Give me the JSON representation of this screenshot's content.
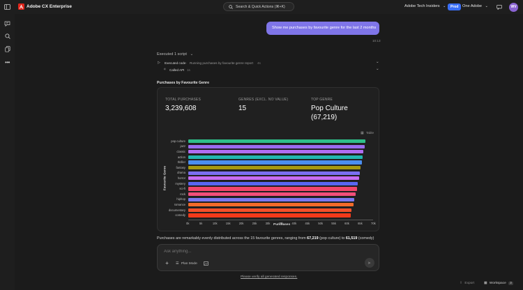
{
  "header": {
    "app_title": "Adobe CX Enterprise",
    "search_placeholder": "Search & Quick Actions (⌘+K)",
    "org_name": "Adobe Tech Insiders",
    "env_badge": "Prod",
    "workspace_switcher": "One Adobe",
    "avatar_initials": "WV"
  },
  "chat": {
    "user_message": "Show me purchases by favourite genre for the last 2 months",
    "message_time": "10:13",
    "executed_header": "Executed 1 script",
    "steps": [
      {
        "label": "Executed code",
        "detail": "Running purchases by favourite genre report",
        "duration": "4s"
      },
      {
        "label": "Called API",
        "detail": "",
        "duration": "1s"
      }
    ],
    "report_title": "Purchases by Favourite Genre",
    "summary": {
      "before": "Purchases are remarkably evenly distributed across the 15 favourite genres, ranging from ",
      "max_value": "67,219",
      "max_genre": " (pop culture) to ",
      "min_value": "61,519",
      "min_genre": " (comedy)"
    }
  },
  "kpis": {
    "total_label": "TOTAL PURCHASES",
    "total_value": "3,239,608",
    "genres_label": "GENRES (EXCL. NO VALUE)",
    "genres_value": "15",
    "top_label": "TOP GENRE",
    "top_value_line1": "Pop Culture",
    "top_value_line2": "(67,219)"
  },
  "table_toggle": "Table",
  "chart_data": {
    "type": "bar",
    "orientation": "horizontal",
    "categories": [
      "pop culture",
      "jazz",
      "classic",
      "action",
      "thriller",
      "fantasy",
      "drama",
      "horror",
      "mystery",
      "sci-fi",
      "rock",
      "hiphop",
      "romance",
      "documentary",
      "comedy"
    ],
    "values": [
      67219,
      66700,
      66400,
      66100,
      65800,
      65300,
      65000,
      64700,
      64300,
      63800,
      63400,
      62900,
      62500,
      61900,
      61519
    ],
    "colors": [
      "#2fbf8a",
      "#9b6bf0",
      "#b06cf2",
      "#22b6b0",
      "#4b8ef0",
      "#a79a10",
      "#7a6ff2",
      "#c66cf2",
      "#5a66f0",
      "#f2466a",
      "#f24f7a",
      "#7b78f0",
      "#f26b2a",
      "#f2502a",
      "#f23a1a"
    ],
    "xlabel": "Purchases",
    "ylabel": "Favourite Genre",
    "xlim": [
      0,
      70000
    ],
    "xticks": [
      "0k",
      "5k",
      "10k",
      "15k",
      "20k",
      "25k",
      "30k",
      "35k",
      "40k",
      "45k",
      "50k",
      "55k",
      "60k",
      "65k",
      "70k"
    ],
    "grid": false,
    "legend": "none"
  },
  "composer": {
    "placeholder": "Ask anything...",
    "plan_mode": "Plan Mode",
    "disclaimer": "Please verify all generated responses."
  },
  "footer": {
    "export": "Export",
    "workspace": "Workspace",
    "workspace_count": "3"
  }
}
